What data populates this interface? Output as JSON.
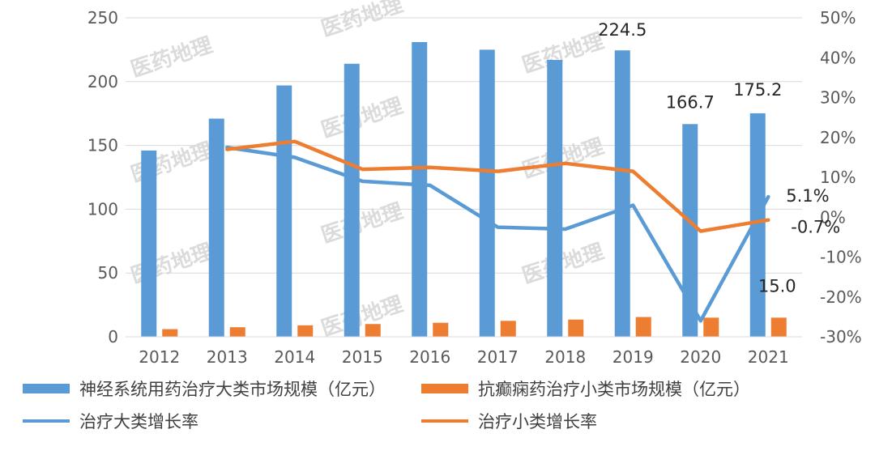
{
  "chart_data": {
    "type": "bar",
    "categories": [
      "2012",
      "2013",
      "2014",
      "2015",
      "2016",
      "2017",
      "2018",
      "2019",
      "2020",
      "2021"
    ],
    "series": [
      {
        "name": "神经系统用药治疗大类市场规模（亿元）",
        "kind": "bar",
        "axis": "left",
        "color": "#5b9bd5",
        "values": [
          146,
          171,
          197,
          214,
          231,
          225,
          217,
          224.5,
          166.7,
          175.2
        ]
      },
      {
        "name": "抗癫痫药治疗小类市场规模（亿元）",
        "kind": "bar",
        "axis": "left",
        "color": "#ed7d31",
        "values": [
          6,
          7.5,
          9,
          10,
          11,
          12.5,
          13.5,
          15.5,
          15,
          15.0
        ]
      },
      {
        "name": "治疗大类增长率",
        "kind": "line",
        "axis": "right",
        "color": "#5b9bd5",
        "values": [
          null,
          17.5,
          15,
          9,
          8,
          -2.5,
          -3,
          3,
          -26,
          5.1
        ]
      },
      {
        "name": "治疗小类增长率",
        "kind": "line",
        "axis": "right",
        "color": "#ed7d31",
        "values": [
          null,
          17,
          19,
          12,
          12.5,
          11.5,
          13.5,
          11.5,
          -3.5,
          -0.7
        ]
      }
    ],
    "y_left": {
      "min": 0,
      "max": 250,
      "ticks": [
        "0",
        "50",
        "100",
        "150",
        "200",
        "250"
      ]
    },
    "y_right": {
      "min": -30,
      "max": 50,
      "ticks": [
        "-30%",
        "-20%",
        "-10%",
        "0%",
        "10%",
        "20%",
        "30%",
        "40%",
        "50%"
      ]
    },
    "data_labels": [
      {
        "text": "224.5",
        "series": 0,
        "index": 7
      },
      {
        "text": "166.7",
        "series": 0,
        "index": 8
      },
      {
        "text": "175.2",
        "series": 0,
        "index": 8.9
      },
      {
        "text": "15.0",
        "series": 1,
        "index": 9
      },
      {
        "text": "5.1%",
        "series": 2,
        "index": 9
      },
      {
        "text": "-0.7%",
        "series": 3,
        "index": 9
      }
    ],
    "grid": true,
    "legend_position": "bottom"
  },
  "watermark": "医药地理"
}
